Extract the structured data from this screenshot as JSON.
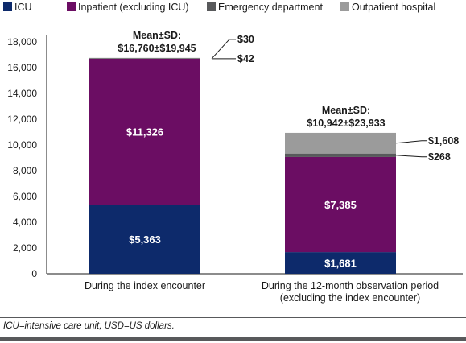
{
  "chart_data": {
    "type": "bar",
    "stacked": true,
    "categories": [
      [
        "During the index encounter"
      ],
      [
        "During the 12-month observation period",
        "(excluding the index encounter)"
      ]
    ],
    "series": [
      {
        "name": "ICU",
        "color": "#0d2a6b",
        "values": [
          5363,
          1681
        ],
        "labels": [
          "$5,363",
          "$1,681"
        ]
      },
      {
        "name": "Inpatient (excluding ICU)",
        "color": "#6b0d63",
        "values": [
          11326,
          7385
        ],
        "labels": [
          "$11,326",
          "$7,385"
        ]
      },
      {
        "name": "Emergency department",
        "color": "#58595b",
        "values": [
          42,
          268
        ],
        "labels": [
          "$42",
          "$268"
        ]
      },
      {
        "name": "Outpatient hospital",
        "color": "#9b9b9b",
        "values": [
          30,
          1608
        ],
        "labels": [
          "$30",
          "$1,608"
        ]
      }
    ],
    "annotations": [
      {
        "line1": "Mean±SD:",
        "line2": "$16,760±$19,945"
      },
      {
        "line1": "Mean±SD:",
        "line2": "$10,942±$23,933"
      }
    ],
    "yticks": [
      "0",
      "2,000",
      "4,000",
      "6,000",
      "8,000",
      "10,000",
      "12,000",
      "14,000",
      "16,000",
      "18,000"
    ],
    "ylim": [
      0,
      18000
    ],
    "legend_position": "top"
  },
  "footnote": "ICU=intensive care unit; USD=US dollars."
}
